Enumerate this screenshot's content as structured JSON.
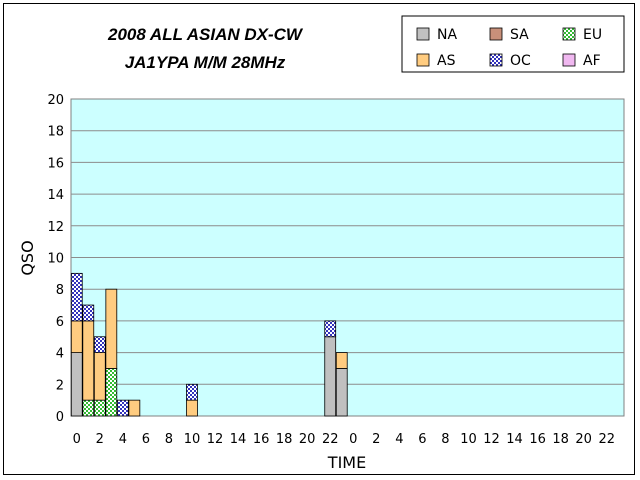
{
  "chart_data": {
    "type": "bar",
    "stacked": true,
    "title_lines": [
      "2008 ALL ASIAN DX-CW",
      "JA1YPA  M/M  28MHz"
    ],
    "xlabel": "TIME",
    "ylabel": "QSO",
    "ylim": [
      0,
      20
    ],
    "yticks": [
      0,
      2,
      4,
      6,
      8,
      10,
      12,
      14,
      16,
      18,
      20
    ],
    "grid": true,
    "legend_position": "top-right",
    "categories": [
      "0",
      "1",
      "2",
      "3",
      "4",
      "5",
      "6",
      "7",
      "8",
      "9",
      "10",
      "11",
      "12",
      "13",
      "14",
      "15",
      "16",
      "17",
      "18",
      "19",
      "20",
      "21",
      "22",
      "23",
      "0",
      "1",
      "2",
      "3",
      "4",
      "5",
      "6",
      "7",
      "8",
      "9",
      "10",
      "11",
      "12",
      "13",
      "14",
      "15",
      "16",
      "17",
      "18",
      "19",
      "20",
      "21",
      "22",
      "23"
    ],
    "tick_labels": [
      "0",
      "2",
      "4",
      "6",
      "8",
      "10",
      "12",
      "14",
      "16",
      "18",
      "20",
      "22",
      "0",
      "2",
      "4",
      "6",
      "8",
      "10",
      "12",
      "14",
      "16",
      "18",
      "20",
      "22"
    ],
    "series": [
      {
        "name": "NA",
        "color": "#c0c0c0",
        "pattern": "solid",
        "values": [
          4,
          0,
          0,
          0,
          0,
          0,
          0,
          0,
          0,
          0,
          0,
          0,
          0,
          0,
          0,
          0,
          0,
          0,
          0,
          0,
          0,
          0,
          5,
          3,
          0,
          0,
          0,
          0,
          0,
          0,
          0,
          0,
          0,
          0,
          0,
          0,
          0,
          0,
          0,
          0,
          0,
          0,
          0,
          0,
          0,
          0,
          0,
          0
        ]
      },
      {
        "name": "SA",
        "color": "#c8907a",
        "pattern": "solid",
        "values": [
          0,
          0,
          0,
          0,
          0,
          0,
          0,
          0,
          0,
          0,
          0,
          0,
          0,
          0,
          0,
          0,
          0,
          0,
          0,
          0,
          0,
          0,
          0,
          0,
          0,
          0,
          0,
          0,
          0,
          0,
          0,
          0,
          0,
          0,
          0,
          0,
          0,
          0,
          0,
          0,
          0,
          0,
          0,
          0,
          0,
          0,
          0,
          0
        ]
      },
      {
        "name": "EU",
        "color": "#99e699",
        "pattern": "check",
        "values": [
          0,
          1,
          1,
          3,
          0,
          0,
          0,
          0,
          0,
          0,
          0,
          0,
          0,
          0,
          0,
          0,
          0,
          0,
          0,
          0,
          0,
          0,
          0,
          0,
          0,
          0,
          0,
          0,
          0,
          0,
          0,
          0,
          0,
          0,
          0,
          0,
          0,
          0,
          0,
          0,
          0,
          0,
          0,
          0,
          0,
          0,
          0,
          0
        ]
      },
      {
        "name": "AS",
        "color": "#ffcc80",
        "pattern": "solid",
        "values": [
          2,
          5,
          3,
          5,
          0,
          1,
          0,
          0,
          0,
          0,
          1,
          0,
          0,
          0,
          0,
          0,
          0,
          0,
          0,
          0,
          0,
          0,
          0,
          1,
          0,
          0,
          0,
          0,
          0,
          0,
          0,
          0,
          0,
          0,
          0,
          0,
          0,
          0,
          0,
          0,
          0,
          0,
          0,
          0,
          0,
          0,
          0,
          0
        ]
      },
      {
        "name": "OC",
        "color": "#aaaaff",
        "pattern": "check",
        "values": [
          3,
          1,
          1,
          0,
          1,
          0,
          0,
          0,
          0,
          0,
          1,
          0,
          0,
          0,
          0,
          0,
          0,
          0,
          0,
          0,
          0,
          0,
          1,
          0,
          0,
          0,
          0,
          0,
          0,
          0,
          0,
          0,
          0,
          0,
          0,
          0,
          0,
          0,
          0,
          0,
          0,
          0,
          0,
          0,
          0,
          0,
          0,
          0
        ]
      },
      {
        "name": "AF",
        "color": "#f0b8f0",
        "pattern": "solid",
        "values": [
          0,
          0,
          0,
          0,
          0,
          0,
          0,
          0,
          0,
          0,
          0,
          0,
          0,
          0,
          0,
          0,
          0,
          0,
          0,
          0,
          0,
          0,
          0,
          0,
          0,
          0,
          0,
          0,
          0,
          0,
          0,
          0,
          0,
          0,
          0,
          0,
          0,
          0,
          0,
          0,
          0,
          0,
          0,
          0,
          0,
          0,
          0,
          0
        ]
      }
    ],
    "legend_order": [
      "NA",
      "SA",
      "EU",
      "AS",
      "OC",
      "AF"
    ],
    "plot_background": "#ccffff"
  }
}
